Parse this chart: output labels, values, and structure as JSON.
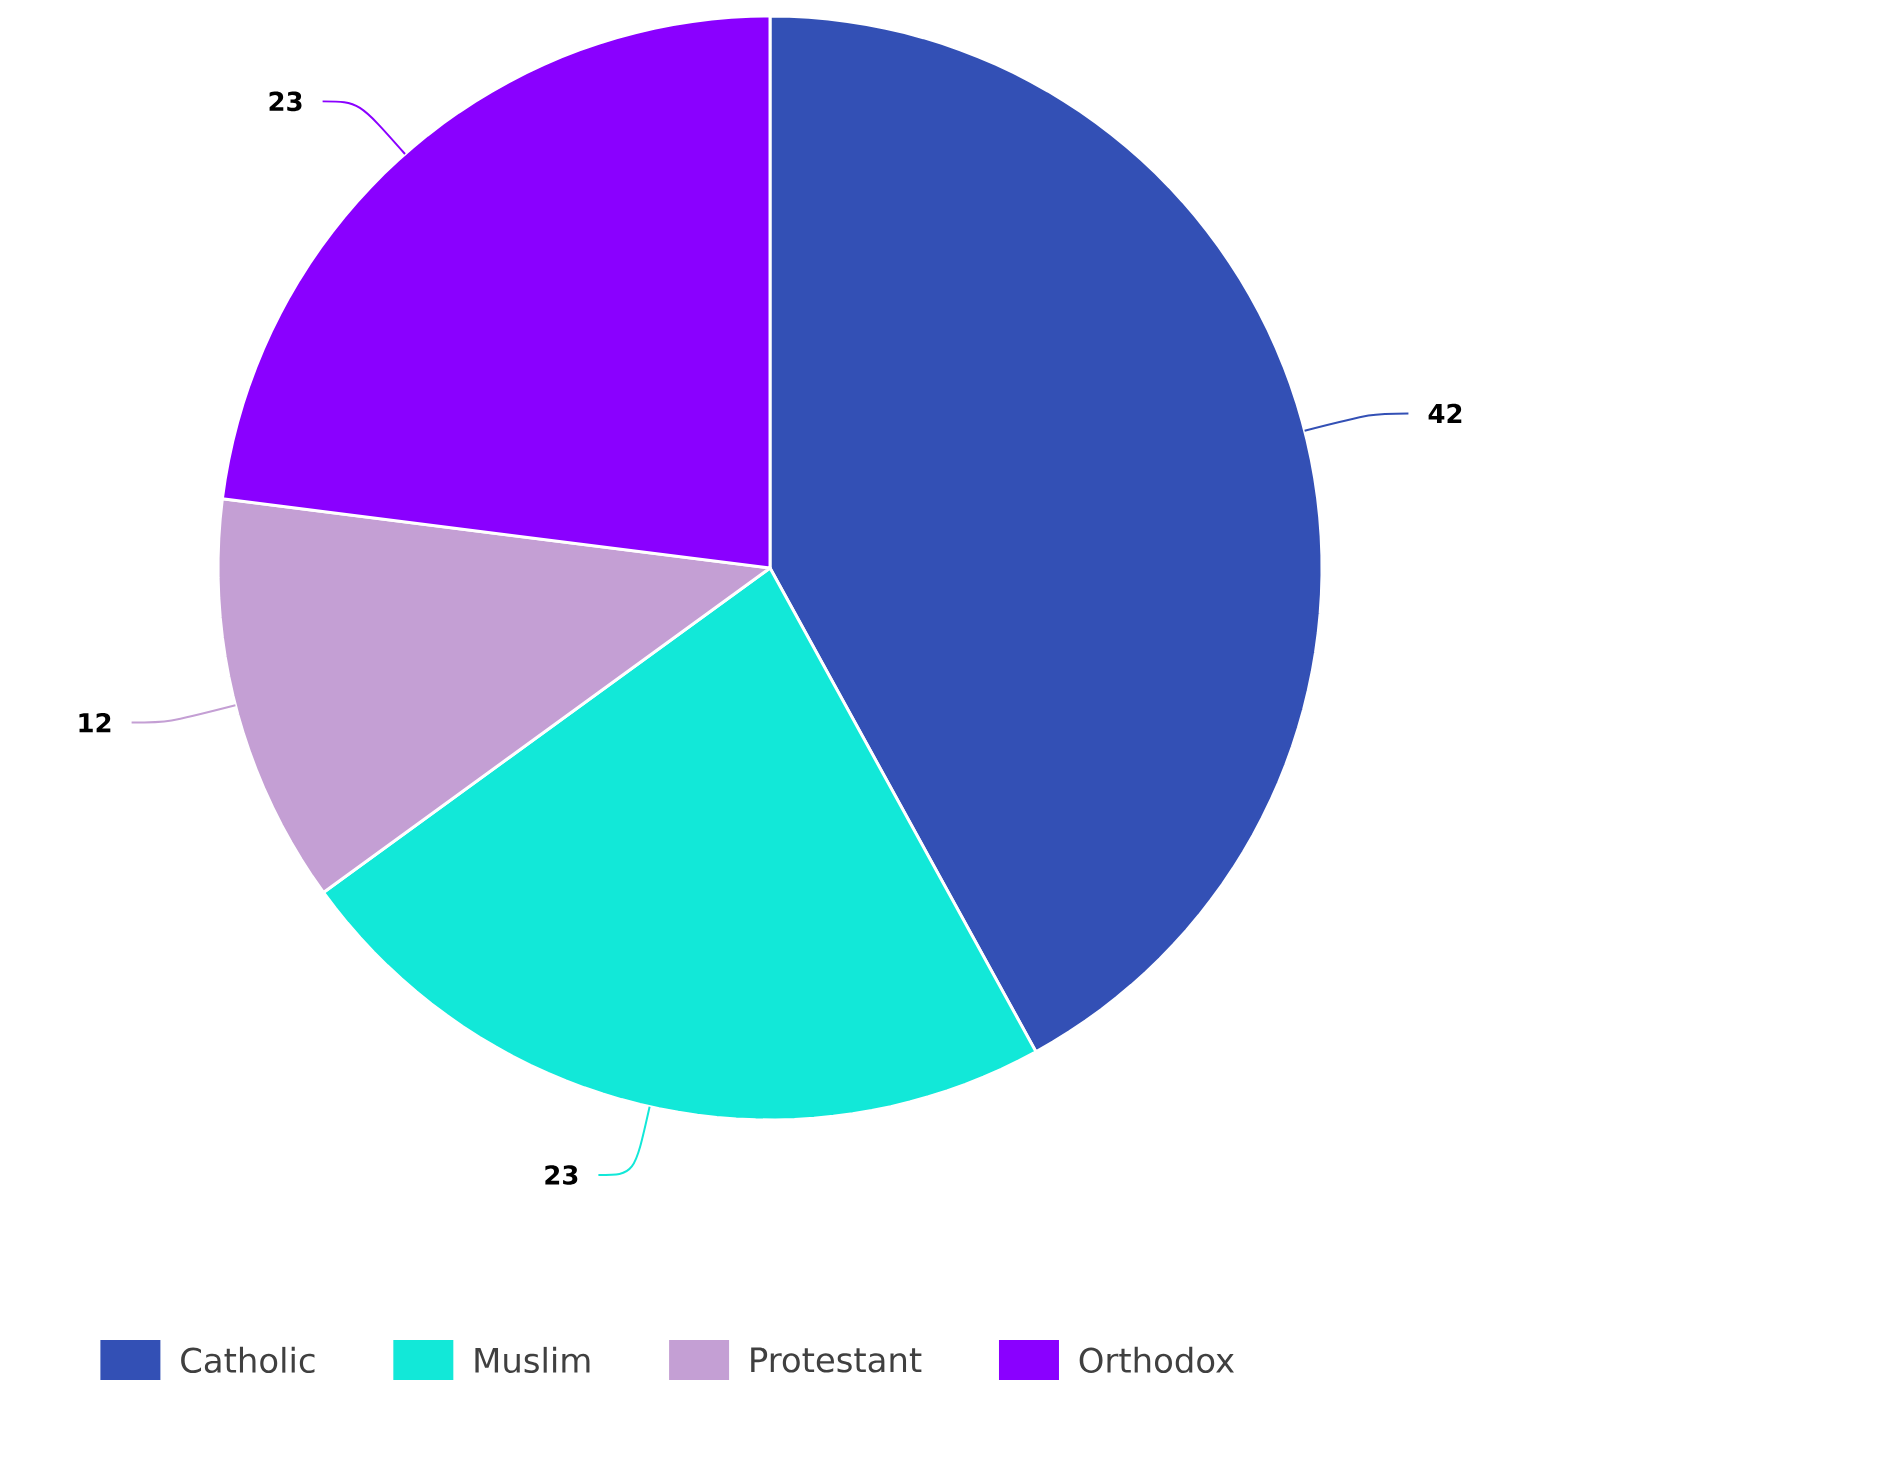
{
  "chart_data": {
    "type": "pie",
    "categories": [
      "Catholic",
      "Muslim",
      "Protestant",
      "Orthodox"
    ],
    "values": [
      42,
      23,
      12,
      23
    ],
    "colors": [
      "#3350b5",
      "#12e8d8",
      "#c49fd4",
      "#8a00ff"
    ],
    "data_labels": true,
    "legend": "bottom"
  }
}
